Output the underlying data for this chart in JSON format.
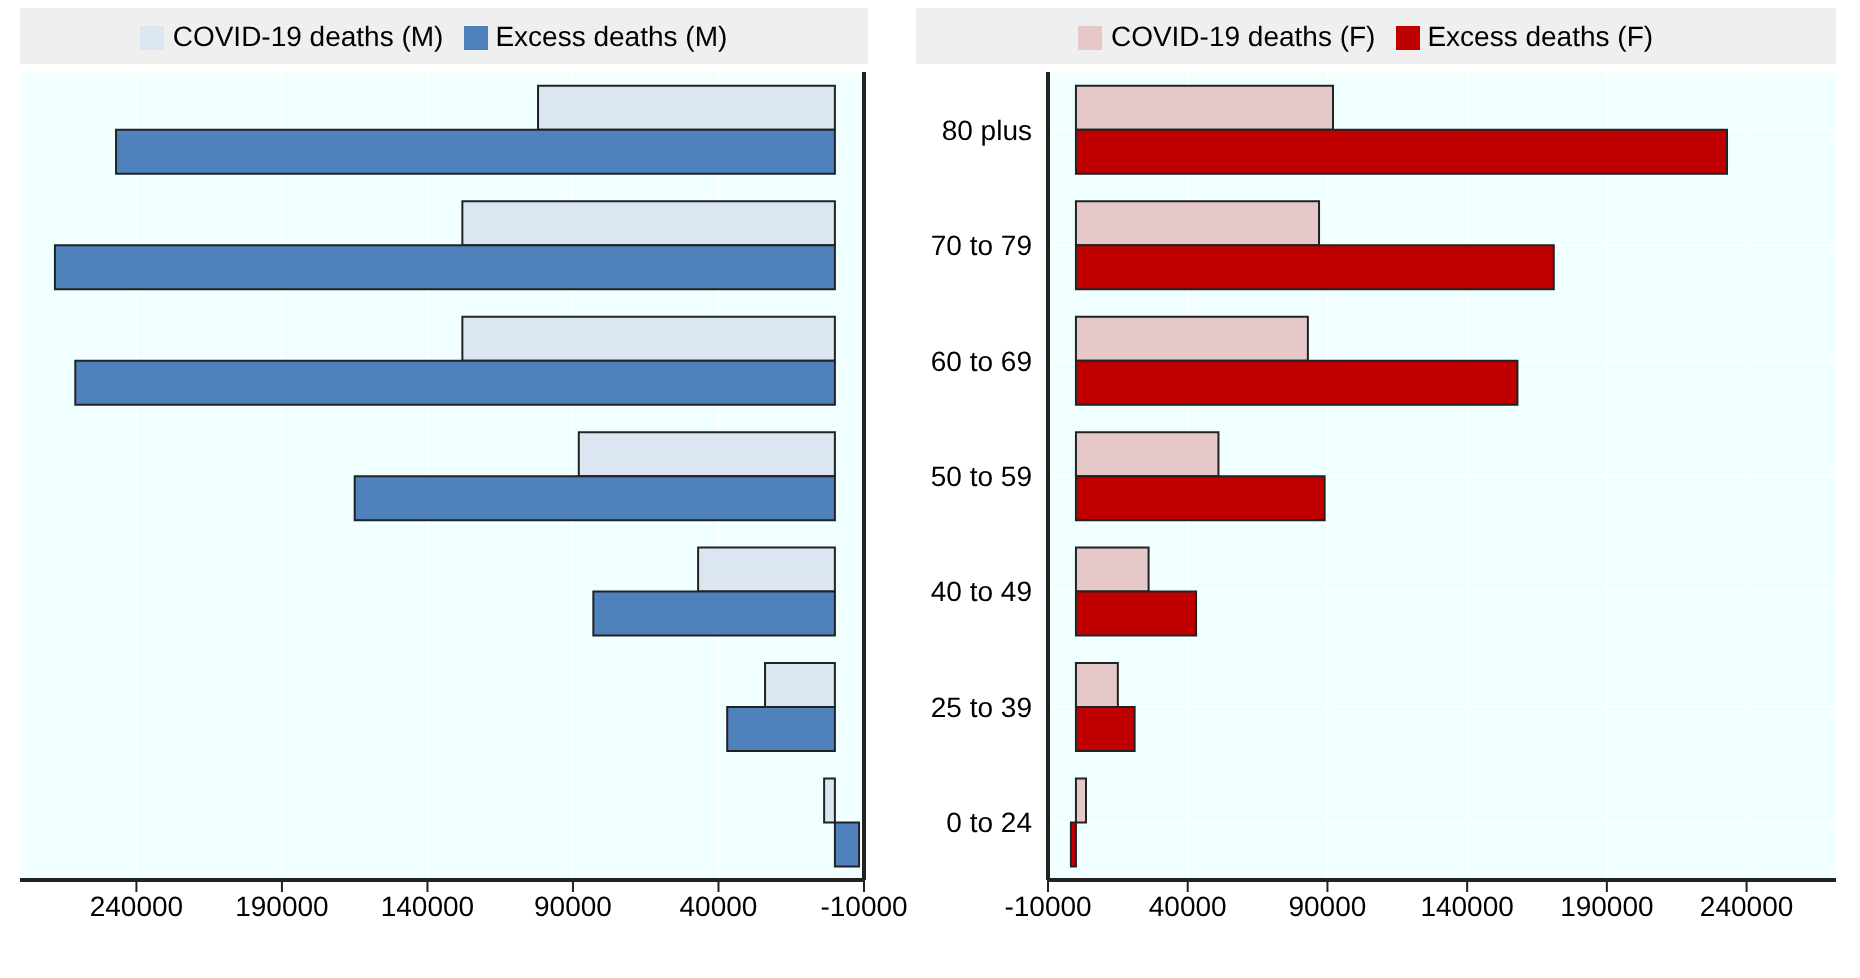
{
  "chart_data": [
    {
      "type": "bar",
      "orientation": "horizontal",
      "categories": [
        null,
        null,
        null,
        null,
        null,
        null,
        null
      ],
      "series": [
        {
          "name": "COVID-19 deaths (M)",
          "color": "#dce6f2",
          "values": [
            102000,
            128000,
            128000,
            88000,
            47000,
            24000,
            3700
          ]
        },
        {
          "name": "Excess deaths (M)",
          "color": "#4f81bd",
          "values": [
            247000,
            268000,
            261000,
            165000,
            83000,
            37000,
            -8300
          ]
        }
      ],
      "xlim": [
        280000,
        -10000
      ],
      "xticks": [
        240000,
        190000,
        140000,
        90000,
        40000,
        -10000
      ],
      "grid": true,
      "legend": "top",
      "tick_labels": "x"
    },
    {
      "type": "bar",
      "orientation": "horizontal",
      "categories": [
        "80 plus",
        "70 to 79",
        "60 to 69",
        "50 to 59",
        "40 to 49",
        "25 to 39",
        "0 to 24"
      ],
      "series": [
        {
          "name": "COVID-19 deaths (F)",
          "color": "#e6c8c8",
          "values": [
            92000,
            87000,
            83000,
            51000,
            26000,
            15000,
            3600
          ]
        },
        {
          "name": "Excess deaths (F)",
          "color": "#c00000",
          "values": [
            233000,
            171000,
            158000,
            89000,
            43000,
            21000,
            -1800
          ]
        }
      ],
      "xlim": [
        -10000,
        272000
      ],
      "xticks": [
        -10000,
        40000,
        90000,
        140000,
        190000,
        240000
      ],
      "grid": true,
      "legend": "top"
    }
  ]
}
